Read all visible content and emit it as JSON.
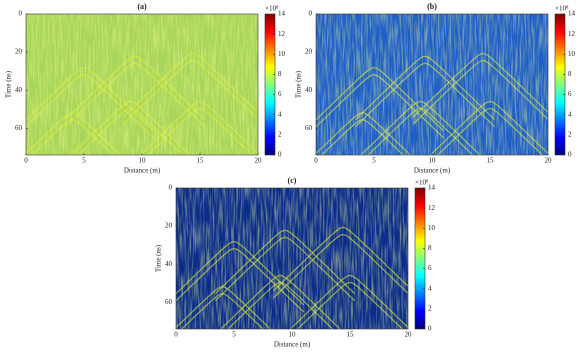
{
  "chart_data": [
    {
      "type": "heatmap",
      "title": "(a)",
      "xlabel": "Distance (m)",
      "ylabel": "Time (ns)",
      "xlim": [
        0,
        20
      ],
      "xticks": [
        0,
        5,
        10,
        15,
        20
      ],
      "ylim": [
        0,
        74
      ],
      "yticks": [
        0,
        20,
        40,
        60
      ],
      "y_inverted": true,
      "colormap": "jet",
      "color": "#a8d65a",
      "clim": [
        0,
        14
      ],
      "cticks": [
        0,
        2,
        4,
        6,
        8,
        10,
        12,
        14
      ],
      "colorbar_label": "×10⁸"
    },
    {
      "type": "heatmap",
      "title": "(b)",
      "xlabel": "Distance (m)",
      "ylabel": "Time (ns)",
      "xlim": [
        0,
        20
      ],
      "xticks": [
        0,
        5,
        10,
        15,
        20
      ],
      "ylim": [
        0,
        74
      ],
      "yticks": [
        0,
        20,
        40,
        60
      ],
      "y_inverted": true,
      "colormap": "jet",
      "color": "#1f5fc8",
      "clim": [
        0,
        14
      ],
      "cticks": [
        0,
        2,
        4,
        6,
        8,
        10,
        12,
        14
      ],
      "colorbar_label": "×10⁸"
    },
    {
      "type": "heatmap",
      "title": "(c)",
      "xlabel": "Distance (m)",
      "ylabel": "Time (ns)",
      "xlim": [
        0,
        20
      ],
      "xticks": [
        0,
        5,
        10,
        15,
        20
      ],
      "ylim": [
        0,
        74
      ],
      "yticks": [
        0,
        20,
        40,
        60
      ],
      "y_inverted": true,
      "colormap": "jet",
      "color": "#0a2d8c",
      "clim": [
        0,
        14
      ],
      "cticks": [
        0,
        2,
        4,
        6,
        8,
        10,
        12,
        14
      ],
      "colorbar_label": "×10⁸"
    }
  ]
}
